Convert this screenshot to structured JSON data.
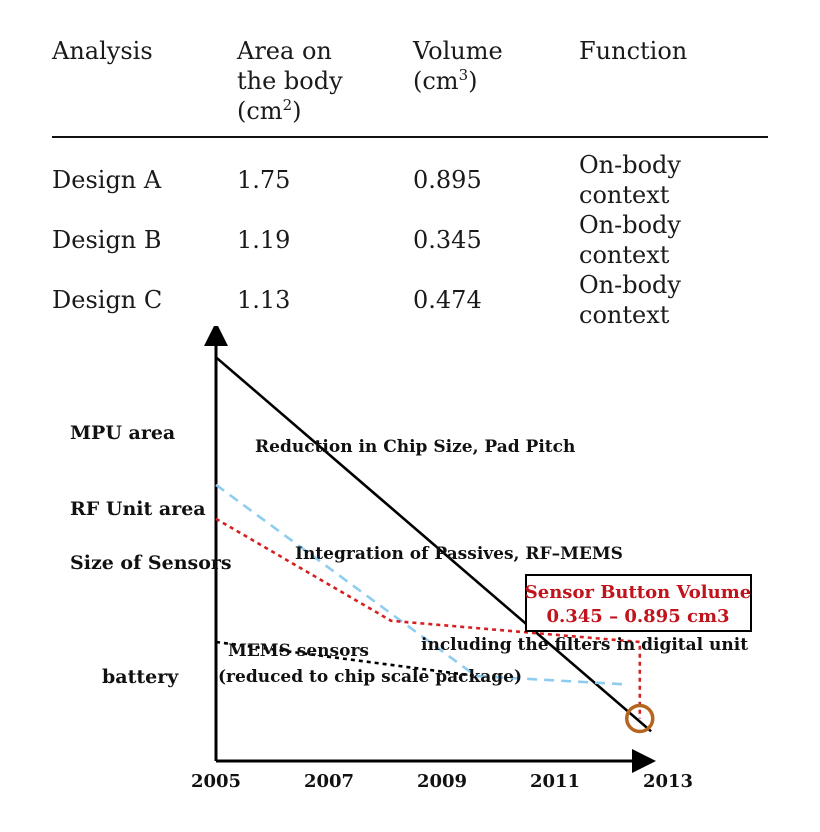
{
  "table": {
    "headers": [
      {
        "lines": [
          "Analysis"
        ],
        "sup": ""
      },
      {
        "lines": [
          "Area on",
          "the body",
          "(cm"
        ],
        "sup": "2",
        "suffix": ")"
      },
      {
        "lines": [
          "Volume",
          "(cm"
        ],
        "sup": "3",
        "suffix": ")"
      },
      {
        "lines": [
          "Function"
        ],
        "sup": ""
      }
    ],
    "rows": [
      [
        "Design A",
        "1.75",
        "0.895",
        "On-body context"
      ],
      [
        "Design B",
        "1.19",
        "0.345",
        "On-body context"
      ],
      [
        "Design C",
        "1.13",
        "0.474",
        "On-body context"
      ]
    ]
  },
  "chart_data": {
    "type": "line",
    "x_ticks": [
      "2005",
      "2007",
      "2009",
      "2011",
      "2013"
    ],
    "xlim": [
      2005,
      2013
    ],
    "y_axis_labels": [
      "MPU area",
      "RF Unit area",
      "Size of Sensors",
      "battery"
    ],
    "grid": false,
    "annotations": {
      "mpu": "Reduction in Chip Size, Pad Pitch",
      "passives": "Integration of Passives, RF–MEMS",
      "filters": "including the filters in digital unit",
      "mems1": "MEMS sensors",
      "mems2": "(reduced to chip scale package)"
    },
    "box": {
      "line1": "Sensor Button Volume",
      "line2": "0.345 – 0.895 cm3"
    },
    "series": [
      {
        "key": "mpu",
        "style": "solid",
        "color": "#000000",
        "points": [
          [
            2005,
            0.95
          ],
          [
            2012.7,
            0.07
          ]
        ]
      },
      {
        "key": "rf",
        "style": "dashed",
        "color": "#8ecdf0",
        "points": [
          [
            2005,
            0.65
          ],
          [
            2009.6,
            0.2
          ],
          [
            2012.3,
            0.18
          ]
        ]
      },
      {
        "key": "sensors",
        "style": "dotted",
        "color": "#d42020",
        "points": [
          [
            2005,
            0.57
          ],
          [
            2008.1,
            0.33
          ],
          [
            2012.5,
            0.28
          ],
          [
            2012.5,
            0.1
          ]
        ]
      },
      {
        "key": "battery",
        "style": "dotted",
        "color": "#000000",
        "points": [
          [
            2005,
            0.28
          ],
          [
            2009.6,
            0.2
          ]
        ]
      }
    ],
    "target_marker_color": "#b5651d",
    "target_marker": [
      2012.5,
      0.1
    ]
  }
}
